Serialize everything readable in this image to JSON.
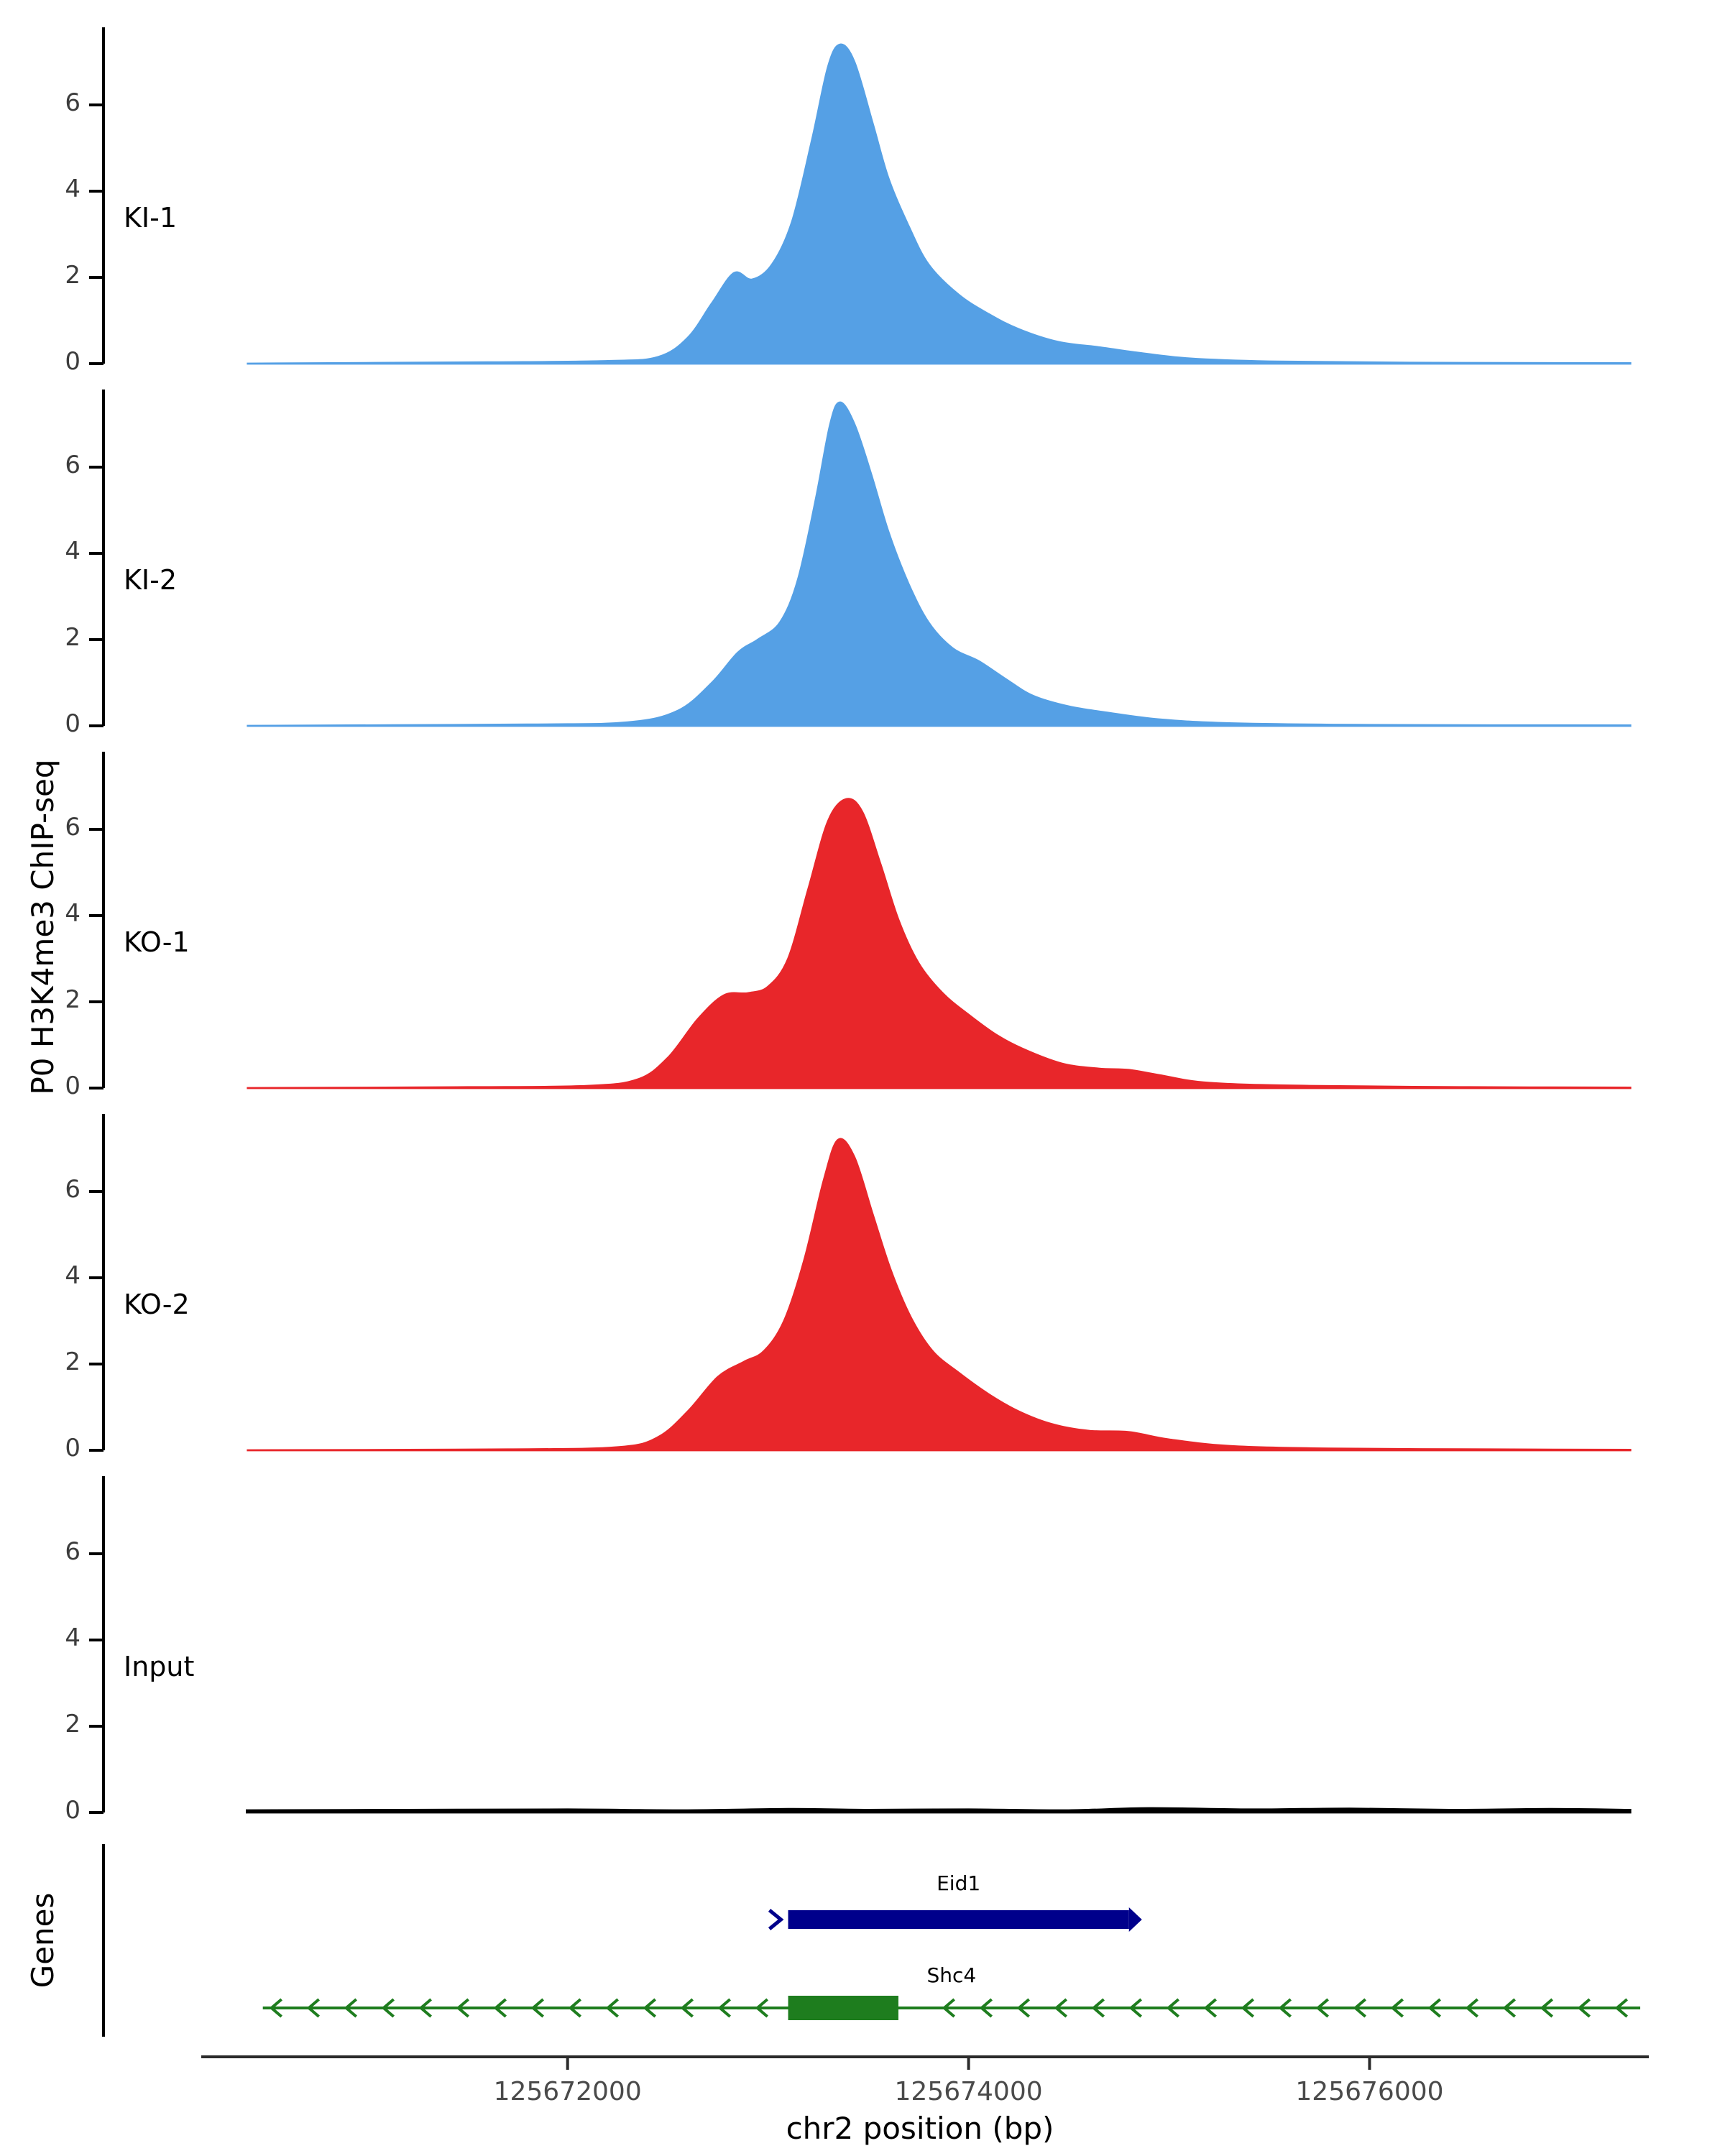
{
  "figure": {
    "y_axis_label": "P0 H3K4me3 ChIP-seq",
    "genes_panel_label": "Genes",
    "x_axis_label": "chr2 position (bp)"
  },
  "chart_data": {
    "type": "area",
    "description": "Genome browser style ChIP-seq coverage tracks over chr2 locus with gene models",
    "x_axis": {
      "label": "chr2 position (bp)",
      "range": [
        125669800,
        125677400
      ],
      "ticks": [
        {
          "value": 125672000,
          "label": "125672000"
        },
        {
          "value": 125674000,
          "label": "125674000"
        },
        {
          "value": 125676000,
          "label": "125676000"
        }
      ]
    },
    "y_axis": {
      "label": "P0 H3K4me3 ChIP-seq",
      "ylim": [
        0,
        7.8
      ],
      "ticks": [
        0,
        2,
        4,
        6
      ],
      "tick_labels": [
        "0",
        "2",
        "4",
        "6"
      ]
    },
    "tracks": [
      {
        "name": "KI-1",
        "color": "#55A0E5",
        "points": [
          [
            125670400,
            0
          ],
          [
            125671600,
            0.03
          ],
          [
            125672200,
            0.06
          ],
          [
            125672450,
            0.15
          ],
          [
            125672600,
            0.6
          ],
          [
            125672720,
            1.4
          ],
          [
            125672830,
            2.1
          ],
          [
            125672920,
            1.95
          ],
          [
            125673020,
            2.3
          ],
          [
            125673120,
            3.3
          ],
          [
            125673220,
            5.2
          ],
          [
            125673300,
            6.9
          ],
          [
            125673360,
            7.4
          ],
          [
            125673430,
            7.0
          ],
          [
            125673520,
            5.6
          ],
          [
            125673600,
            4.3
          ],
          [
            125673700,
            3.2
          ],
          [
            125673800,
            2.3
          ],
          [
            125673950,
            1.6
          ],
          [
            125674100,
            1.15
          ],
          [
            125674250,
            0.8
          ],
          [
            125674450,
            0.5
          ],
          [
            125674650,
            0.38
          ],
          [
            125674850,
            0.25
          ],
          [
            125675100,
            0.12
          ],
          [
            125675500,
            0.05
          ],
          [
            125676200,
            0.02
          ],
          [
            125677300,
            0.01
          ]
        ]
      },
      {
        "name": "KI-2",
        "color": "#55A0E5",
        "points": [
          [
            125670400,
            0
          ],
          [
            125671800,
            0.03
          ],
          [
            125672300,
            0.08
          ],
          [
            125672550,
            0.35
          ],
          [
            125672720,
            1.0
          ],
          [
            125672850,
            1.7
          ],
          [
            125672950,
            2.0
          ],
          [
            125673060,
            2.4
          ],
          [
            125673150,
            3.4
          ],
          [
            125673240,
            5.3
          ],
          [
            125673310,
            7.0
          ],
          [
            125673360,
            7.5
          ],
          [
            125673430,
            7.0
          ],
          [
            125673510,
            5.9
          ],
          [
            125673600,
            4.5
          ],
          [
            125673700,
            3.3
          ],
          [
            125673800,
            2.4
          ],
          [
            125673920,
            1.8
          ],
          [
            125674050,
            1.5
          ],
          [
            125674180,
            1.1
          ],
          [
            125674320,
            0.7
          ],
          [
            125674500,
            0.45
          ],
          [
            125674700,
            0.3
          ],
          [
            125674950,
            0.15
          ],
          [
            125675300,
            0.06
          ],
          [
            125676000,
            0.02
          ],
          [
            125677300,
            0.01
          ]
        ]
      },
      {
        "name": "KO-1",
        "color": "#E8262A",
        "points": [
          [
            125670400,
            0
          ],
          [
            125671500,
            0.02
          ],
          [
            125672100,
            0.05
          ],
          [
            125672350,
            0.2
          ],
          [
            125672500,
            0.7
          ],
          [
            125672650,
            1.6
          ],
          [
            125672780,
            2.15
          ],
          [
            125672900,
            2.2
          ],
          [
            125673000,
            2.35
          ],
          [
            125673100,
            3.0
          ],
          [
            125673200,
            4.6
          ],
          [
            125673300,
            6.2
          ],
          [
            125673390,
            6.7
          ],
          [
            125673470,
            6.4
          ],
          [
            125673560,
            5.2
          ],
          [
            125673650,
            3.9
          ],
          [
            125673750,
            2.9
          ],
          [
            125673870,
            2.2
          ],
          [
            125674000,
            1.7
          ],
          [
            125674150,
            1.2
          ],
          [
            125674300,
            0.85
          ],
          [
            125674480,
            0.55
          ],
          [
            125674650,
            0.45
          ],
          [
            125674800,
            0.42
          ],
          [
            125674950,
            0.3
          ],
          [
            125675200,
            0.12
          ],
          [
            125675700,
            0.05
          ],
          [
            125676500,
            0.02
          ],
          [
            125677300,
            0.01
          ]
        ]
      },
      {
        "name": "KO-2",
        "color": "#E8262A",
        "points": [
          [
            125670400,
            0
          ],
          [
            125671700,
            0.02
          ],
          [
            125672250,
            0.07
          ],
          [
            125672450,
            0.3
          ],
          [
            125672600,
            0.9
          ],
          [
            125672750,
            1.7
          ],
          [
            125672880,
            2.05
          ],
          [
            125672980,
            2.3
          ],
          [
            125673080,
            3.0
          ],
          [
            125673180,
            4.4
          ],
          [
            125673280,
            6.3
          ],
          [
            125673350,
            7.2
          ],
          [
            125673430,
            6.8
          ],
          [
            125673520,
            5.5
          ],
          [
            125673610,
            4.2
          ],
          [
            125673710,
            3.1
          ],
          [
            125673820,
            2.3
          ],
          [
            125673950,
            1.8
          ],
          [
            125674100,
            1.3
          ],
          [
            125674250,
            0.9
          ],
          [
            125674420,
            0.6
          ],
          [
            125674600,
            0.45
          ],
          [
            125674800,
            0.42
          ],
          [
            125675000,
            0.25
          ],
          [
            125675300,
            0.1
          ],
          [
            125675800,
            0.04
          ],
          [
            125676600,
            0.02
          ],
          [
            125677300,
            0.01
          ]
        ]
      },
      {
        "name": "Input",
        "color": "#000000",
        "points": [
          [
            125670400,
            0.05
          ],
          [
            125671200,
            0.06
          ],
          [
            125672000,
            0.07
          ],
          [
            125672600,
            0.05
          ],
          [
            125673100,
            0.08
          ],
          [
            125673500,
            0.06
          ],
          [
            125674000,
            0.07
          ],
          [
            125674500,
            0.05
          ],
          [
            125674900,
            0.1
          ],
          [
            125675400,
            0.07
          ],
          [
            125675900,
            0.09
          ],
          [
            125676400,
            0.06
          ],
          [
            125676900,
            0.08
          ],
          [
            125677300,
            0.06
          ]
        ]
      }
    ],
    "genes": {
      "panel_label": "Genes",
      "items": [
        {
          "name": "Eid1",
          "type": "box",
          "strand": "+",
          "color": "#00008B",
          "start": 125673100,
          "end": 125674800
        },
        {
          "name": "Shc4",
          "type": "gene-model",
          "strand": "-",
          "color": "#1E7D1E",
          "start": 125670480,
          "end": 125677350,
          "exons": [
            {
              "start": 125673100,
              "end": 125673650
            }
          ]
        }
      ]
    }
  }
}
